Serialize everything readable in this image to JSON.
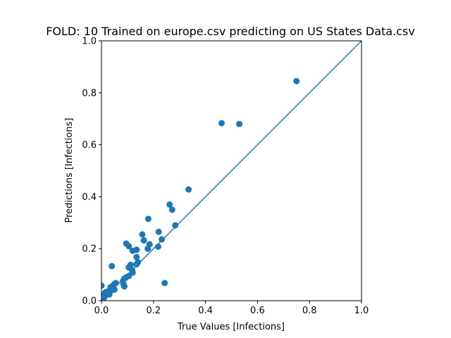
{
  "chart_data": {
    "type": "scatter",
    "title": "FOLD: 10 Trained on europe.csv predicting on US States Data.csv",
    "xlabel": "True Values [Infections]",
    "ylabel": "Predictions [Infections]",
    "xlim": [
      0,
      1
    ],
    "ylim": [
      0,
      1
    ],
    "xticks": [
      "0.0",
      "0.2",
      "0.4",
      "0.6",
      "0.8",
      "1.0"
    ],
    "yticks": [
      "0.0",
      "0.2",
      "0.4",
      "0.6",
      "0.8",
      "1.0"
    ],
    "grid": false,
    "marker_color": "#1f77b4",
    "reference_line": {
      "from": [
        0,
        0
      ],
      "to": [
        1,
        1
      ],
      "color": "#1f77b4"
    },
    "points": [
      [
        0.75,
        0.845
      ],
      [
        0.462,
        0.683
      ],
      [
        0.53,
        0.68
      ],
      [
        0.335,
        0.428
      ],
      [
        0.262,
        0.37
      ],
      [
        0.272,
        0.35
      ],
      [
        0.18,
        0.315
      ],
      [
        0.284,
        0.29
      ],
      [
        0.22,
        0.265
      ],
      [
        0.157,
        0.255
      ],
      [
        0.232,
        0.236
      ],
      [
        0.163,
        0.232
      ],
      [
        0.095,
        0.22
      ],
      [
        0.185,
        0.217
      ],
      [
        0.105,
        0.21
      ],
      [
        0.218,
        0.208
      ],
      [
        0.178,
        0.2
      ],
      [
        0.135,
        0.196
      ],
      [
        0.12,
        0.192
      ],
      [
        0.135,
        0.168
      ],
      [
        0.14,
        0.148
      ],
      [
        0.135,
        0.14
      ],
      [
        0.112,
        0.138
      ],
      [
        0.04,
        0.133
      ],
      [
        0.105,
        0.128
      ],
      [
        0.118,
        0.118
      ],
      [
        0.12,
        0.108
      ],
      [
        0.105,
        0.095
      ],
      [
        0.095,
        0.09
      ],
      [
        0.088,
        0.085
      ],
      [
        0.082,
        0.075
      ],
      [
        0.055,
        0.068
      ],
      [
        0.048,
        0.063
      ],
      [
        0.085,
        0.062
      ],
      [
        0.088,
        0.055
      ],
      [
        0.0,
        0.058
      ],
      [
        0.045,
        0.05
      ],
      [
        0.035,
        0.052
      ],
      [
        0.05,
        0.043
      ],
      [
        0.04,
        0.04
      ],
      [
        0.03,
        0.038
      ],
      [
        0.022,
        0.034
      ],
      [
        0.015,
        0.032
      ],
      [
        0.028,
        0.03
      ],
      [
        0.018,
        0.026
      ],
      [
        0.03,
        0.024
      ],
      [
        0.01,
        0.022
      ],
      [
        0.005,
        0.02
      ],
      [
        0.012,
        0.015
      ],
      [
        0.003,
        0.012
      ],
      [
        0.008,
        0.008
      ],
      [
        0.0,
        0.005
      ],
      [
        0.243,
        0.068
      ]
    ]
  }
}
